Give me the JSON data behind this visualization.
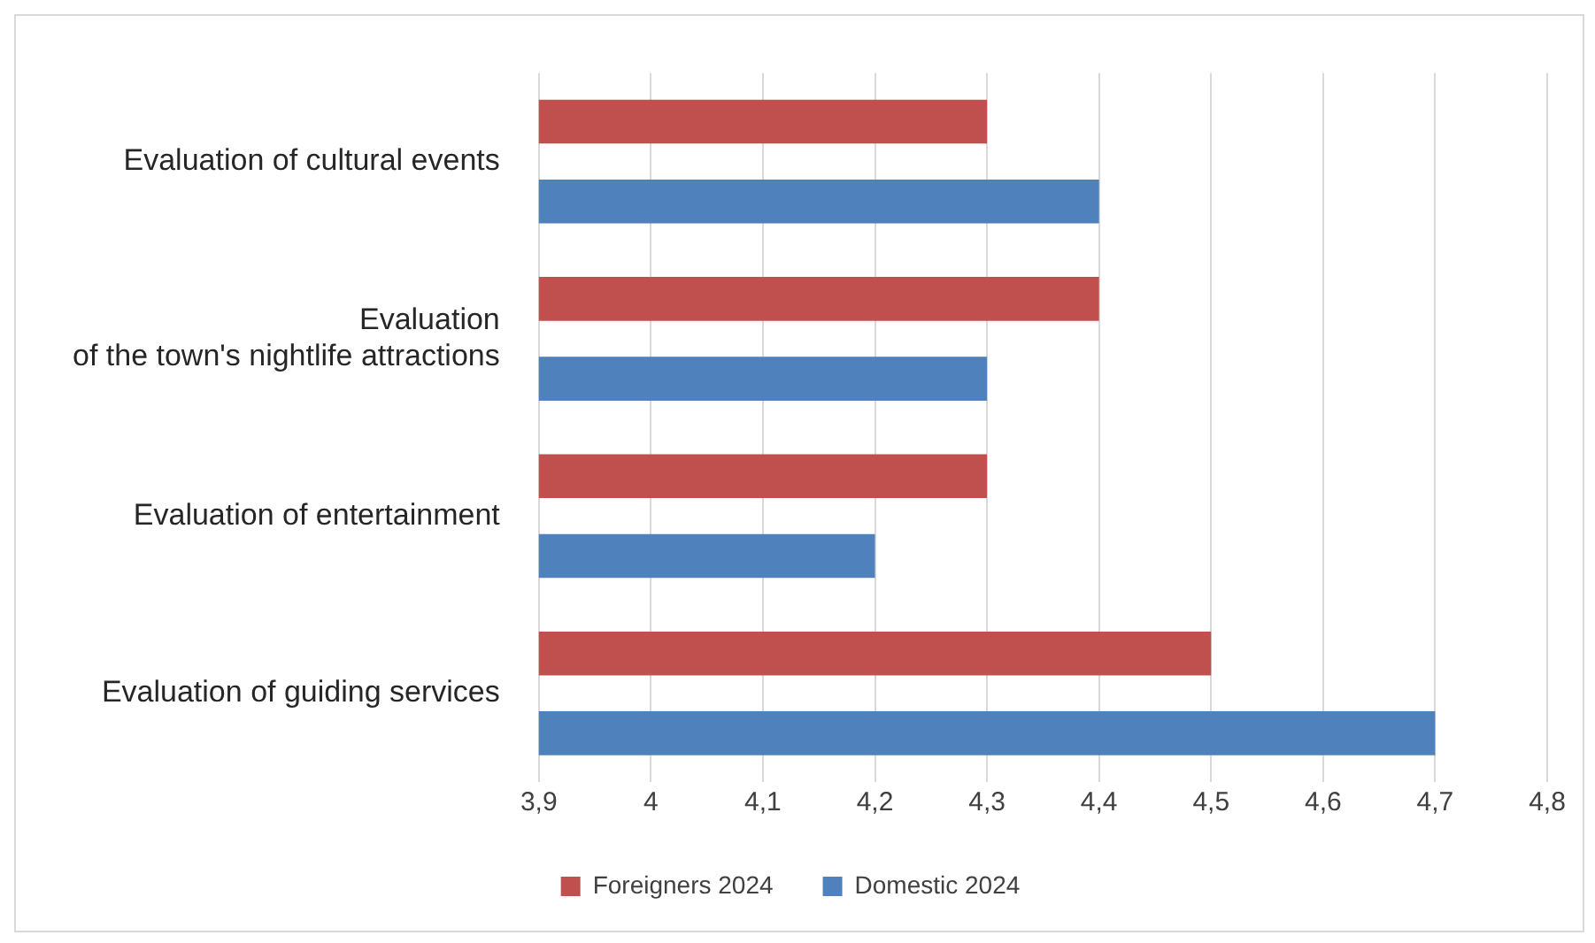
{
  "chart_data": {
    "type": "bar",
    "orientation": "horizontal",
    "categories": [
      "Evaluation of cultural events",
      "Evaluation of the town's nightlife attractions",
      "Evaluation of entertainment",
      "Evaluation of guiding services"
    ],
    "series": [
      {
        "name": "Foreigners 2024",
        "color": "#c0504d",
        "values": [
          4.3,
          4.4,
          4.3,
          4.5
        ]
      },
      {
        "name": "Domestic 2024",
        "color": "#4f81bd",
        "values": [
          4.4,
          4.3,
          4.2,
          4.7
        ]
      }
    ],
    "xlim": [
      3.9,
      4.8
    ],
    "xticks": [
      {
        "value": 3.9,
        "label": "3,9"
      },
      4,
      {
        "value": 4.1,
        "label": "4,1"
      },
      {
        "value": 4.2,
        "label": "4,2"
      },
      {
        "value": 4.3,
        "label": "4,3"
      },
      {
        "value": 4.4,
        "label": "4,4"
      },
      {
        "value": 4.5,
        "label": "4,5"
      },
      {
        "value": 4.6,
        "label": "4,6"
      },
      {
        "value": 4.7,
        "label": "4,7"
      },
      {
        "value": 4.8,
        "label": "4,8"
      }
    ],
    "grid": "x",
    "legend": "bottom"
  }
}
